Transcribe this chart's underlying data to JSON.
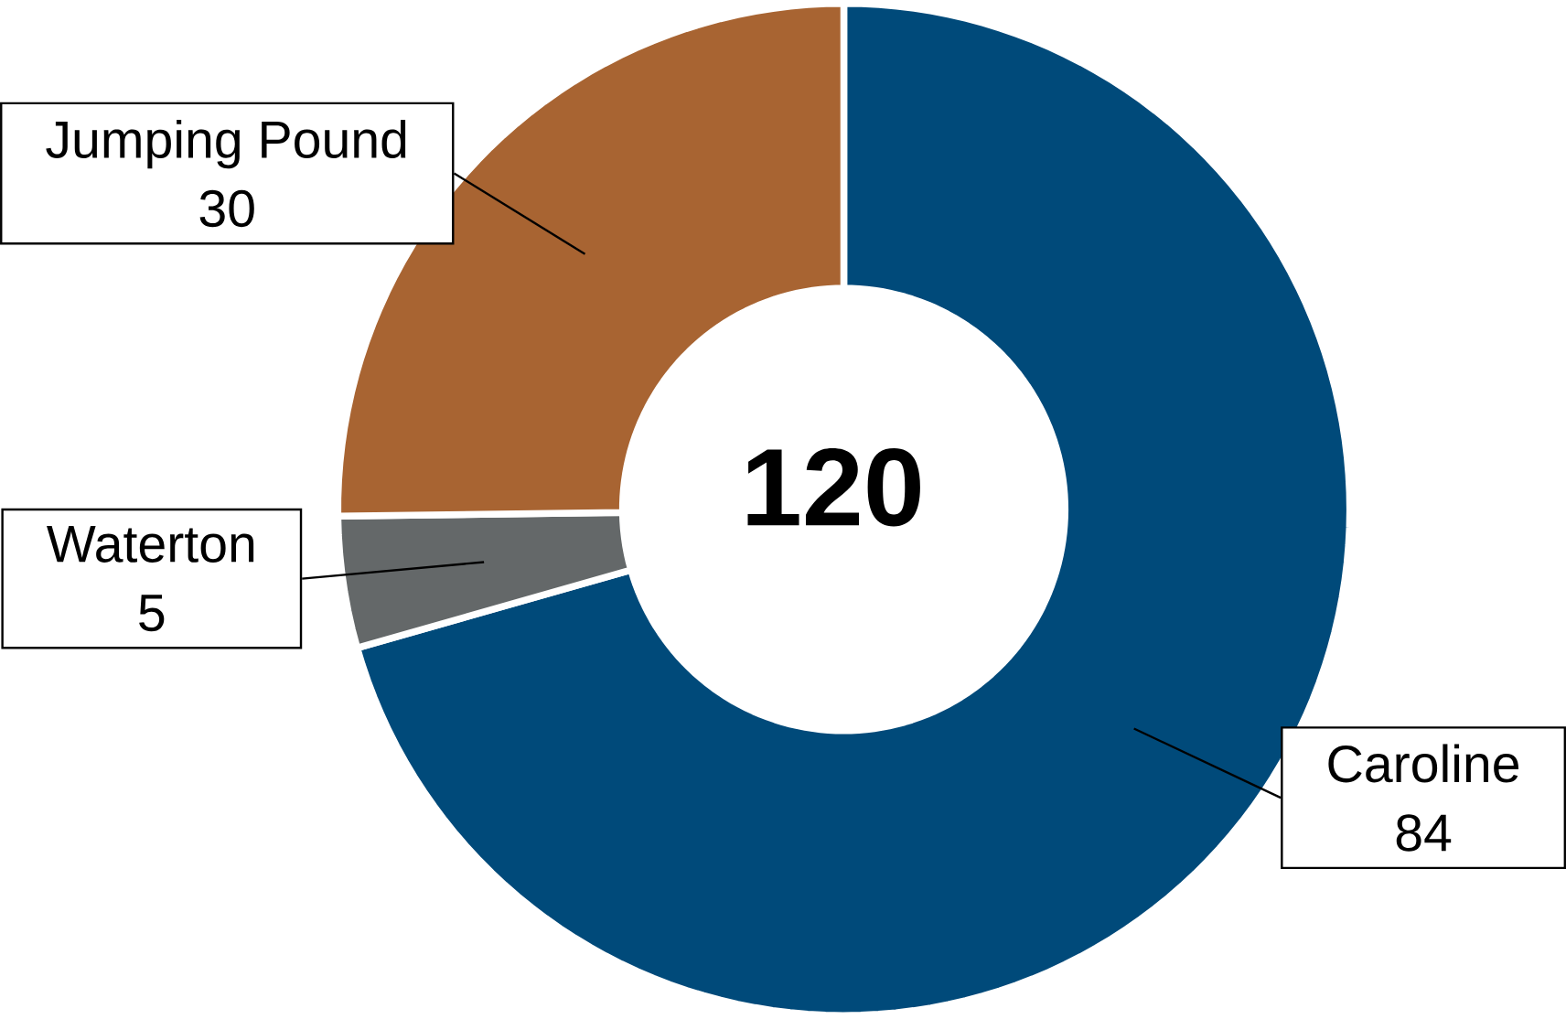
{
  "chart_data": {
    "type": "donut",
    "categories": [
      "Caroline",
      "Waterton",
      "Jumping Pound"
    ],
    "values": [
      84,
      5,
      30
    ],
    "colors": [
      "#004a7a",
      "#646869",
      "#a86432"
    ],
    "annotations": [
      "120"
    ],
    "data_labels": true
  }
}
